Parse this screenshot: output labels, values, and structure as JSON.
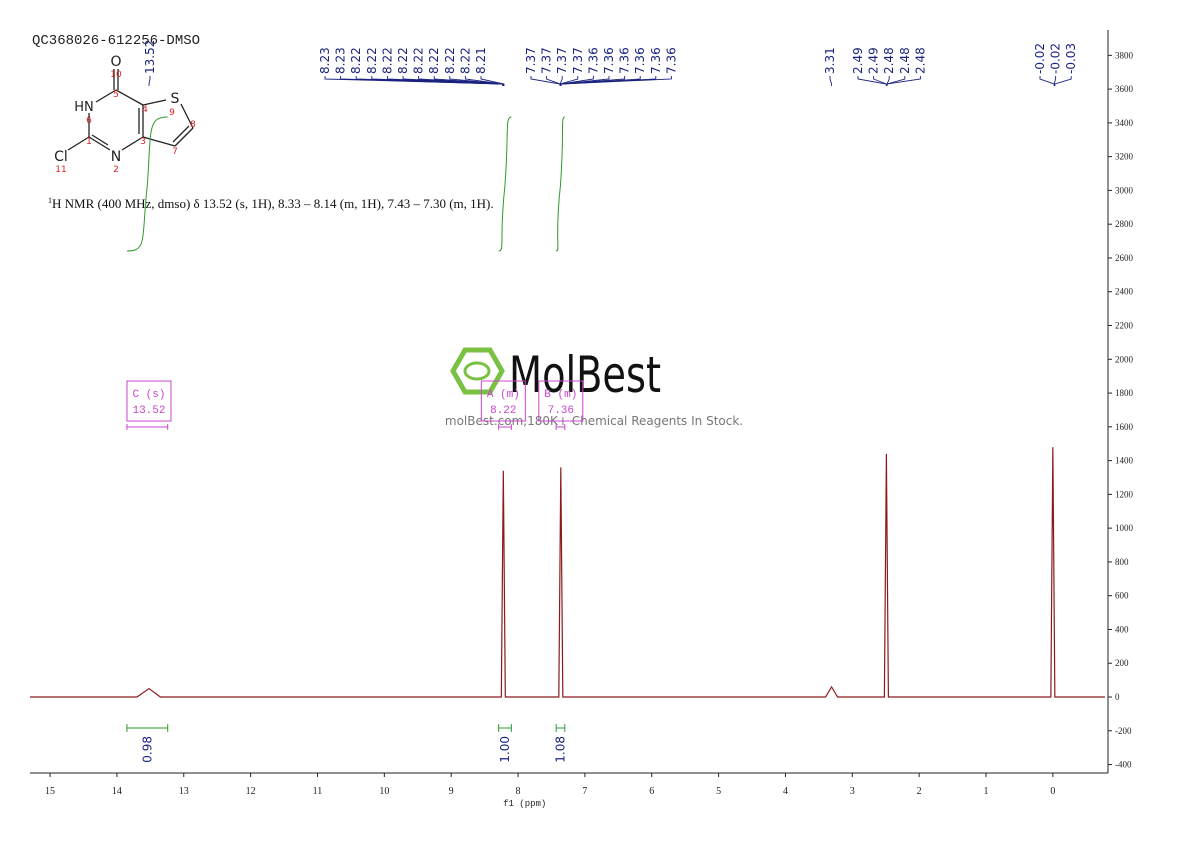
{
  "chart_data": {
    "type": "nmr",
    "title": "QC368026-612256-DMSO",
    "description": {
      "sup": "1",
      "text": "H NMR (400 MHz, dmso) δ 13.52 (s, 1H), 8.33 – 8.14 (m, 1H), 7.43 – 7.30 (m, 1H)."
    },
    "x_label": "f1 (ppm)",
    "xlim": [
      15.3,
      -0.78
    ],
    "xticks": [
      15,
      14,
      13,
      12,
      11,
      10,
      9,
      8,
      7,
      6,
      5,
      4,
      3,
      2,
      1,
      0
    ],
    "ylim": [
      -450,
      3950
    ],
    "yticks": [
      -400,
      -200,
      0,
      200,
      400,
      600,
      800,
      1000,
      1200,
      1400,
      1600,
      1800,
      2000,
      2200,
      2400,
      2600,
      2800,
      3000,
      3200,
      3400,
      3600,
      3800
    ],
    "color": "#8b1a1a",
    "x": [
      15.3,
      13.7,
      13.52,
      13.35,
      8.25,
      8.22,
      8.19,
      7.39,
      7.36,
      7.33,
      3.4,
      3.31,
      3.22,
      2.52,
      2.49,
      2.46,
      0.03,
      0,
      -0.03,
      -0.78
    ],
    "values": [
      0,
      0,
      50,
      0,
      0,
      1340,
      0,
      0,
      1360,
      0,
      0,
      60,
      0,
      0,
      1440,
      0,
      0,
      1480,
      0,
      0
    ],
    "peak_labels": [
      [
        13.52
      ],
      [
        8.23,
        8.23,
        8.22,
        8.22,
        8.22,
        8.22,
        8.22,
        8.22,
        8.22,
        8.22,
        8.21
      ],
      [
        7.37,
        7.37,
        7.37,
        7.37,
        7.36,
        7.36,
        7.36,
        7.36,
        7.36,
        7.36
      ],
      [
        3.31
      ],
      [
        2.49,
        2.49,
        2.48,
        2.48,
        2.48
      ],
      [
        -0.02,
        -0.02,
        -0.03
      ]
    ],
    "integrals": {
      "ranges": [
        [
          13.85,
          13.24
        ],
        [
          8.29,
          8.1
        ],
        [
          7.43,
          7.3
        ]
      ],
      "values": [
        0.98,
        1,
        1.08
      ],
      "value_labels": [
        "0.98",
        "1.00",
        "1.08"
      ]
    },
    "multiplets": [
      {
        "label": "C (s)",
        "shift": 13.52
      },
      {
        "label": "A (m)",
        "shift": 8.22
      },
      {
        "label": "B (m)",
        "shift": 7.36
      }
    ],
    "watermark": {
      "brand": "MolBest",
      "tagline": "molBest.com,180K+ Chemical Reagents In Stock."
    },
    "molecule": {
      "atoms": [
        "O",
        "10",
        "5",
        "HN",
        "6",
        "4",
        "S",
        "9",
        "8",
        "1",
        "3",
        "7",
        "Cl",
        "11",
        "N",
        "2"
      ]
    }
  }
}
